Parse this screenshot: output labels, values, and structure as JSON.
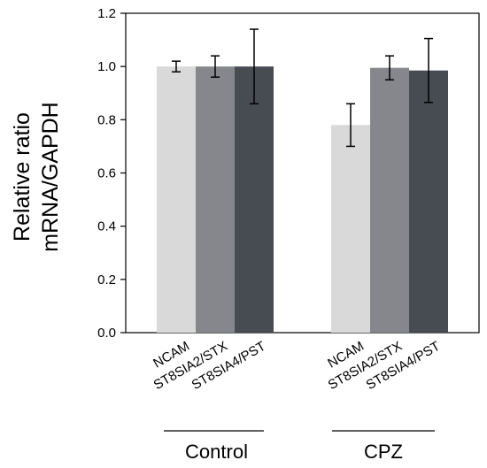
{
  "chart_data": {
    "type": "bar",
    "title": "",
    "ylabel_lines": [
      "Relative ratio",
      "mRNA/GAPDH"
    ],
    "ylim": [
      0,
      1.2
    ],
    "yticks": [
      "0.0",
      "0.2",
      "0.4",
      "0.6",
      "0.8",
      "1.0",
      "1.2"
    ],
    "grid": false,
    "groups": [
      {
        "label": "Control",
        "bars": [
          {
            "category": "NCAM",
            "value": 1.0,
            "error": 0.02,
            "color": "#d9d9d9"
          },
          {
            "category": "ST8SIA2/STX",
            "value": 1.0,
            "error": 0.04,
            "color": "#85878d"
          },
          {
            "category": "ST8SIA4/PST",
            "value": 1.0,
            "error": 0.14,
            "color": "#474b52"
          }
        ]
      },
      {
        "label": "CPZ",
        "bars": [
          {
            "category": "NCAM",
            "value": 0.78,
            "error": 0.08,
            "color": "#d9d9d9"
          },
          {
            "category": "ST8SIA2/STX",
            "value": 0.995,
            "error": 0.045,
            "color": "#85878d"
          },
          {
            "category": "ST8SIA4/PST",
            "value": 0.985,
            "error": 0.12,
            "color": "#474b52"
          }
        ]
      }
    ]
  }
}
